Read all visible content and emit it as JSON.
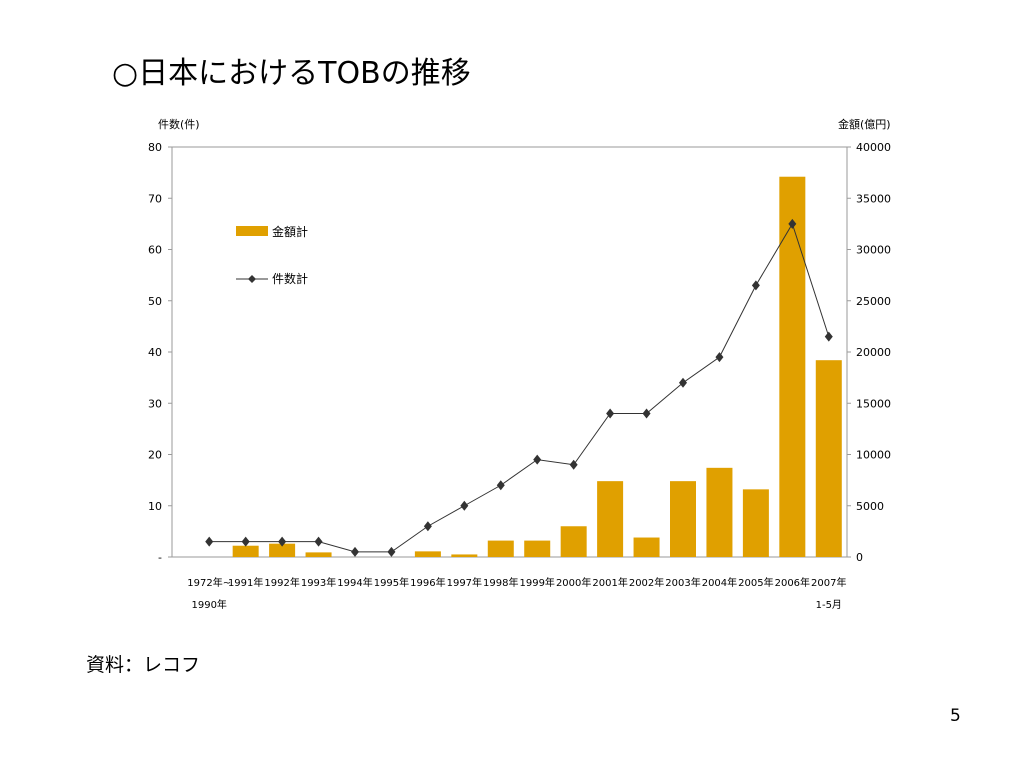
{
  "slide": {
    "title": "○日本におけるTOBの推移",
    "source": "資料：レコフ",
    "page_number": "5"
  },
  "chart_data": {
    "type": "bar",
    "title": "",
    "categories": [
      [
        "1972年~",
        "1990年"
      ],
      [
        "1991年"
      ],
      [
        "1992年"
      ],
      [
        "1993年"
      ],
      [
        "1994年"
      ],
      [
        "1995年"
      ],
      [
        "1996年"
      ],
      [
        "1997年"
      ],
      [
        "1998年"
      ],
      [
        "1999年"
      ],
      [
        "2000年"
      ],
      [
        "2001年"
      ],
      [
        "2002年"
      ],
      [
        "2003年"
      ],
      [
        "2004年"
      ],
      [
        "2005年"
      ],
      [
        "2006年"
      ],
      [
        "2007年",
        "1-5月"
      ]
    ],
    "series": [
      {
        "name": "金額計",
        "type": "bar",
        "axis": "right",
        "color": "#E0A000",
        "values": [
          0,
          1100,
          1300,
          450,
          0,
          0,
          550,
          250,
          1600,
          1600,
          3000,
          7400,
          1900,
          7400,
          8700,
          6600,
          37100,
          19200
        ]
      },
      {
        "name": "件数計",
        "type": "line",
        "axis": "left",
        "color": "#333333",
        "marker": "diamond",
        "values": [
          3,
          3,
          3,
          3,
          1,
          1,
          6,
          10,
          14,
          19,
          18,
          28,
          28,
          34,
          39,
          53,
          65,
          43
        ]
      }
    ],
    "ylabel_left": "件数(件)",
    "ylabel_right": "金額(億円)",
    "yticks_left": [
      "80",
      "70",
      "60",
      "50",
      "40",
      "30",
      "20",
      "10",
      "-"
    ],
    "yticks_right": [
      "40000",
      "35000",
      "30000",
      "25000",
      "20000",
      "15000",
      "10000",
      "5000",
      "0"
    ],
    "ylim_left": [
      0,
      80
    ],
    "ylim_right": [
      0,
      40000
    ],
    "grid": false,
    "legend_position": "upper-left inside"
  }
}
